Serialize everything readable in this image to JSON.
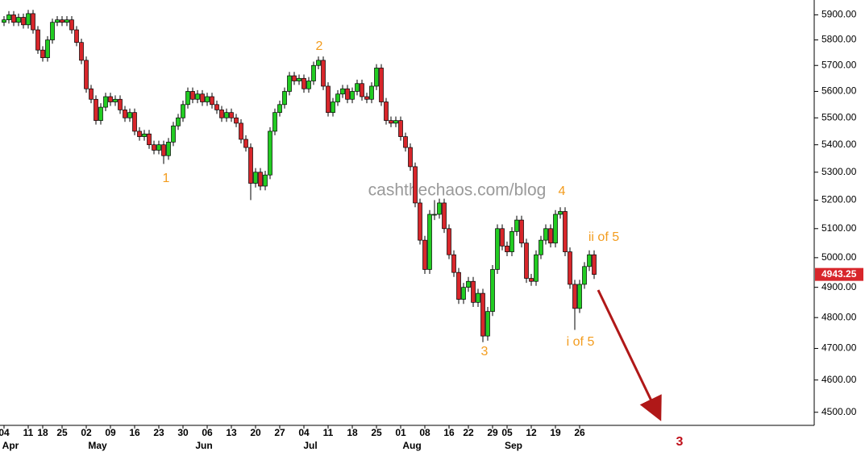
{
  "chart_data": {
    "type": "candlestick",
    "log_scale": true,
    "up_color": "#22cc22",
    "down_color": "#d8262b",
    "ylim": [
      4460,
      5960
    ],
    "yticks": [
      {
        "value": 5900,
        "label": "5900.00"
      },
      {
        "value": 5800,
        "label": "5800.00"
      },
      {
        "value": 5700,
        "label": "5700.00"
      },
      {
        "value": 5600,
        "label": "5600.00"
      },
      {
        "value": 5500,
        "label": "5500.00"
      },
      {
        "value": 5400,
        "label": "5400.00"
      },
      {
        "value": 5300,
        "label": "5300.00"
      },
      {
        "value": 5200,
        "label": "5200.00"
      },
      {
        "value": 5100,
        "label": "5100.00"
      },
      {
        "value": 5000,
        "label": "5000.00"
      },
      {
        "value": 4900,
        "label": "4900.00"
      },
      {
        "value": 4800,
        "label": "4800.00"
      },
      {
        "value": 4700,
        "label": "4700.00"
      },
      {
        "value": 4600,
        "label": "4600.00"
      },
      {
        "value": 4500,
        "label": "4500.00"
      }
    ],
    "categories": [
      "04",
      null,
      null,
      null,
      null,
      "11",
      null,
      null,
      "18",
      null,
      null,
      null,
      "25",
      null,
      null,
      null,
      null,
      "02",
      null,
      null,
      null,
      null,
      "09",
      null,
      null,
      null,
      null,
      "16",
      null,
      null,
      null,
      null,
      "23",
      null,
      null,
      null,
      null,
      "30",
      null,
      null,
      null,
      null,
      "06",
      null,
      null,
      null,
      null,
      "13",
      null,
      null,
      null,
      null,
      "20",
      null,
      null,
      null,
      null,
      "27",
      null,
      null,
      null,
      null,
      "04",
      null,
      null,
      null,
      null,
      "11",
      null,
      null,
      null,
      null,
      "18",
      null,
      null,
      null,
      null,
      "25",
      null,
      null,
      null,
      null,
      "01",
      null,
      null,
      null,
      null,
      "08",
      null,
      null,
      null,
      null,
      "16",
      null,
      null,
      null,
      "22",
      null,
      null,
      null,
      null,
      "29",
      null,
      null,
      "05",
      null,
      null,
      null,
      null,
      "12",
      null,
      null,
      null,
      null,
      "19",
      null,
      null,
      null,
      null,
      "26",
      null,
      null,
      null
    ],
    "months": [
      "Apr",
      null,
      null,
      null,
      null,
      null,
      null,
      null,
      null,
      null,
      null,
      null,
      null,
      null,
      null,
      null,
      null,
      null,
      "May",
      null,
      null,
      null,
      null,
      null,
      null,
      null,
      null,
      null,
      null,
      null,
      null,
      null,
      null,
      null,
      null,
      null,
      null,
      null,
      null,
      null,
      "Jun",
      null,
      null,
      null,
      null,
      null,
      null,
      null,
      null,
      null,
      null,
      null,
      null,
      null,
      null,
      null,
      null,
      null,
      null,
      null,
      null,
      null,
      "Jul",
      null,
      null,
      null,
      null,
      null,
      null,
      null,
      null,
      null,
      null,
      null,
      null,
      null,
      null,
      null,
      null,
      null,
      null,
      null,
      null,
      "Aug",
      null,
      null,
      null,
      null,
      null,
      null,
      null,
      null,
      null,
      null,
      null,
      null,
      null,
      null,
      null,
      null,
      null,
      null,
      null,
      null,
      "Sep",
      null,
      null,
      null,
      null,
      null,
      null,
      null,
      null,
      null,
      null,
      null,
      null,
      null,
      null,
      null,
      null,
      null,
      null
    ],
    "open": [
      5870,
      5880,
      5900,
      5870,
      5890,
      5860,
      5905,
      5840,
      5760,
      5730,
      5800,
      5870,
      5880,
      5870,
      5880,
      5840,
      5790,
      5720,
      5610,
      5570,
      5490,
      5540,
      5580,
      5560,
      5570,
      5530,
      5500,
      5520,
      5450,
      5430,
      5440,
      5400,
      5380,
      5400,
      5360,
      5410,
      5470,
      5500,
      5550,
      5600,
      5570,
      5590,
      5560,
      5580,
      5550,
      5530,
      5500,
      5520,
      5500,
      5480,
      5420,
      5390,
      5260,
      5300,
      5250,
      5290,
      5450,
      5520,
      5550,
      5600,
      5660,
      5640,
      5650,
      5610,
      5640,
      5700,
      5720,
      5620,
      5520,
      5560,
      5590,
      5610,
      5570,
      5600,
      5630,
      5580,
      5570,
      5620,
      5690,
      5560,
      5490,
      5480,
      5490,
      5430,
      5390,
      5320,
      5190,
      5060,
      4960,
      5150,
      5150,
      5190,
      5100,
      5010,
      4950,
      4860,
      4900,
      4920,
      4850,
      4880,
      4740,
      4820,
      4960,
      5100,
      5040,
      5020,
      5090,
      5130,
      5050,
      4930,
      4920,
      5010,
      5060,
      5100,
      5050,
      5150,
      5160,
      5020,
      4910,
      4830,
      4910,
      4970,
      5010
    ],
    "high": [
      5895,
      5915,
      5915,
      5905,
      5905,
      5920,
      5920,
      5855,
      5775,
      5815,
      5885,
      5895,
      5895,
      5895,
      5895,
      5855,
      5805,
      5735,
      5625,
      5585,
      5555,
      5595,
      5595,
      5585,
      5585,
      5545,
      5535,
      5535,
      5465,
      5455,
      5455,
      5415,
      5415,
      5415,
      5425,
      5485,
      5515,
      5565,
      5615,
      5615,
      5605,
      5605,
      5595,
      5595,
      5565,
      5545,
      5535,
      5535,
      5515,
      5495,
      5435,
      5405,
      5315,
      5315,
      5305,
      5465,
      5535,
      5565,
      5615,
      5675,
      5675,
      5665,
      5665,
      5655,
      5715,
      5735,
      5735,
      5635,
      5575,
      5605,
      5625,
      5625,
      5615,
      5645,
      5645,
      5595,
      5635,
      5705,
      5705,
      5575,
      5505,
      5505,
      5505,
      5445,
      5405,
      5335,
      5205,
      5075,
      5165,
      5200,
      5205,
      5205,
      5115,
      5025,
      4965,
      4915,
      4935,
      4935,
      4895,
      4895,
      4835,
      4975,
      5115,
      5115,
      5055,
      5105,
      5145,
      5145,
      5065,
      4945,
      5025,
      5075,
      5115,
      5115,
      5165,
      5175,
      5175,
      5035,
      4925,
      4925,
      4985,
      5025,
      5025
    ],
    "low": [
      5855,
      5865,
      5855,
      5855,
      5845,
      5845,
      5825,
      5745,
      5715,
      5715,
      5785,
      5855,
      5855,
      5855,
      5825,
      5775,
      5705,
      5595,
      5555,
      5475,
      5475,
      5525,
      5545,
      5545,
      5515,
      5485,
      5485,
      5435,
      5415,
      5415,
      5385,
      5365,
      5365,
      5330,
      5345,
      5395,
      5455,
      5485,
      5535,
      5555,
      5555,
      5545,
      5545,
      5535,
      5515,
      5485,
      5485,
      5485,
      5465,
      5405,
      5375,
      5200,
      5245,
      5235,
      5235,
      5275,
      5435,
      5505,
      5535,
      5585,
      5625,
      5625,
      5595,
      5595,
      5625,
      5685,
      5605,
      5505,
      5505,
      5545,
      5575,
      5555,
      5555,
      5585,
      5565,
      5555,
      5555,
      5605,
      5545,
      5475,
      5465,
      5465,
      5415,
      5375,
      5305,
      5175,
      5045,
      4945,
      4945,
      5130,
      5135,
      5085,
      4995,
      4935,
      4845,
      4845,
      4885,
      4835,
      4835,
      4720,
      4725,
      4805,
      4945,
      5025,
      5005,
      5005,
      5075,
      5035,
      4915,
      4905,
      4905,
      4995,
      5045,
      5035,
      5035,
      5135,
      5005,
      4895,
      4760,
      4815,
      4895,
      4955,
      4928
    ],
    "close": [
      5880,
      5900,
      5870,
      5890,
      5860,
      5905,
      5840,
      5760,
      5730,
      5800,
      5870,
      5880,
      5870,
      5880,
      5840,
      5790,
      5720,
      5610,
      5570,
      5490,
      5540,
      5580,
      5560,
      5570,
      5530,
      5500,
      5520,
      5450,
      5430,
      5440,
      5400,
      5380,
      5400,
      5360,
      5410,
      5470,
      5500,
      5550,
      5600,
      5570,
      5590,
      5560,
      5580,
      5550,
      5530,
      5500,
      5520,
      5500,
      5480,
      5420,
      5390,
      5260,
      5300,
      5250,
      5290,
      5450,
      5520,
      5550,
      5600,
      5660,
      5640,
      5650,
      5610,
      5640,
      5700,
      5720,
      5620,
      5520,
      5560,
      5590,
      5610,
      5570,
      5600,
      5630,
      5580,
      5570,
      5620,
      5690,
      5560,
      5490,
      5480,
      5490,
      5430,
      5390,
      5320,
      5190,
      5060,
      4960,
      5150,
      5150,
      5190,
      5100,
      5010,
      4950,
      4860,
      4900,
      4920,
      4850,
      4880,
      4740,
      4820,
      4960,
      5100,
      5040,
      5020,
      5090,
      5130,
      5050,
      4930,
      4920,
      5010,
      5060,
      5100,
      5050,
      5150,
      5160,
      5020,
      4910,
      4830,
      4910,
      4970,
      5010,
      4943.25
    ],
    "annotations": [
      "1",
      "2",
      "3",
      "4",
      "i of 5",
      "ii of 5",
      "3"
    ],
    "watermark": "cashthechaos.com/blog"
  }
}
